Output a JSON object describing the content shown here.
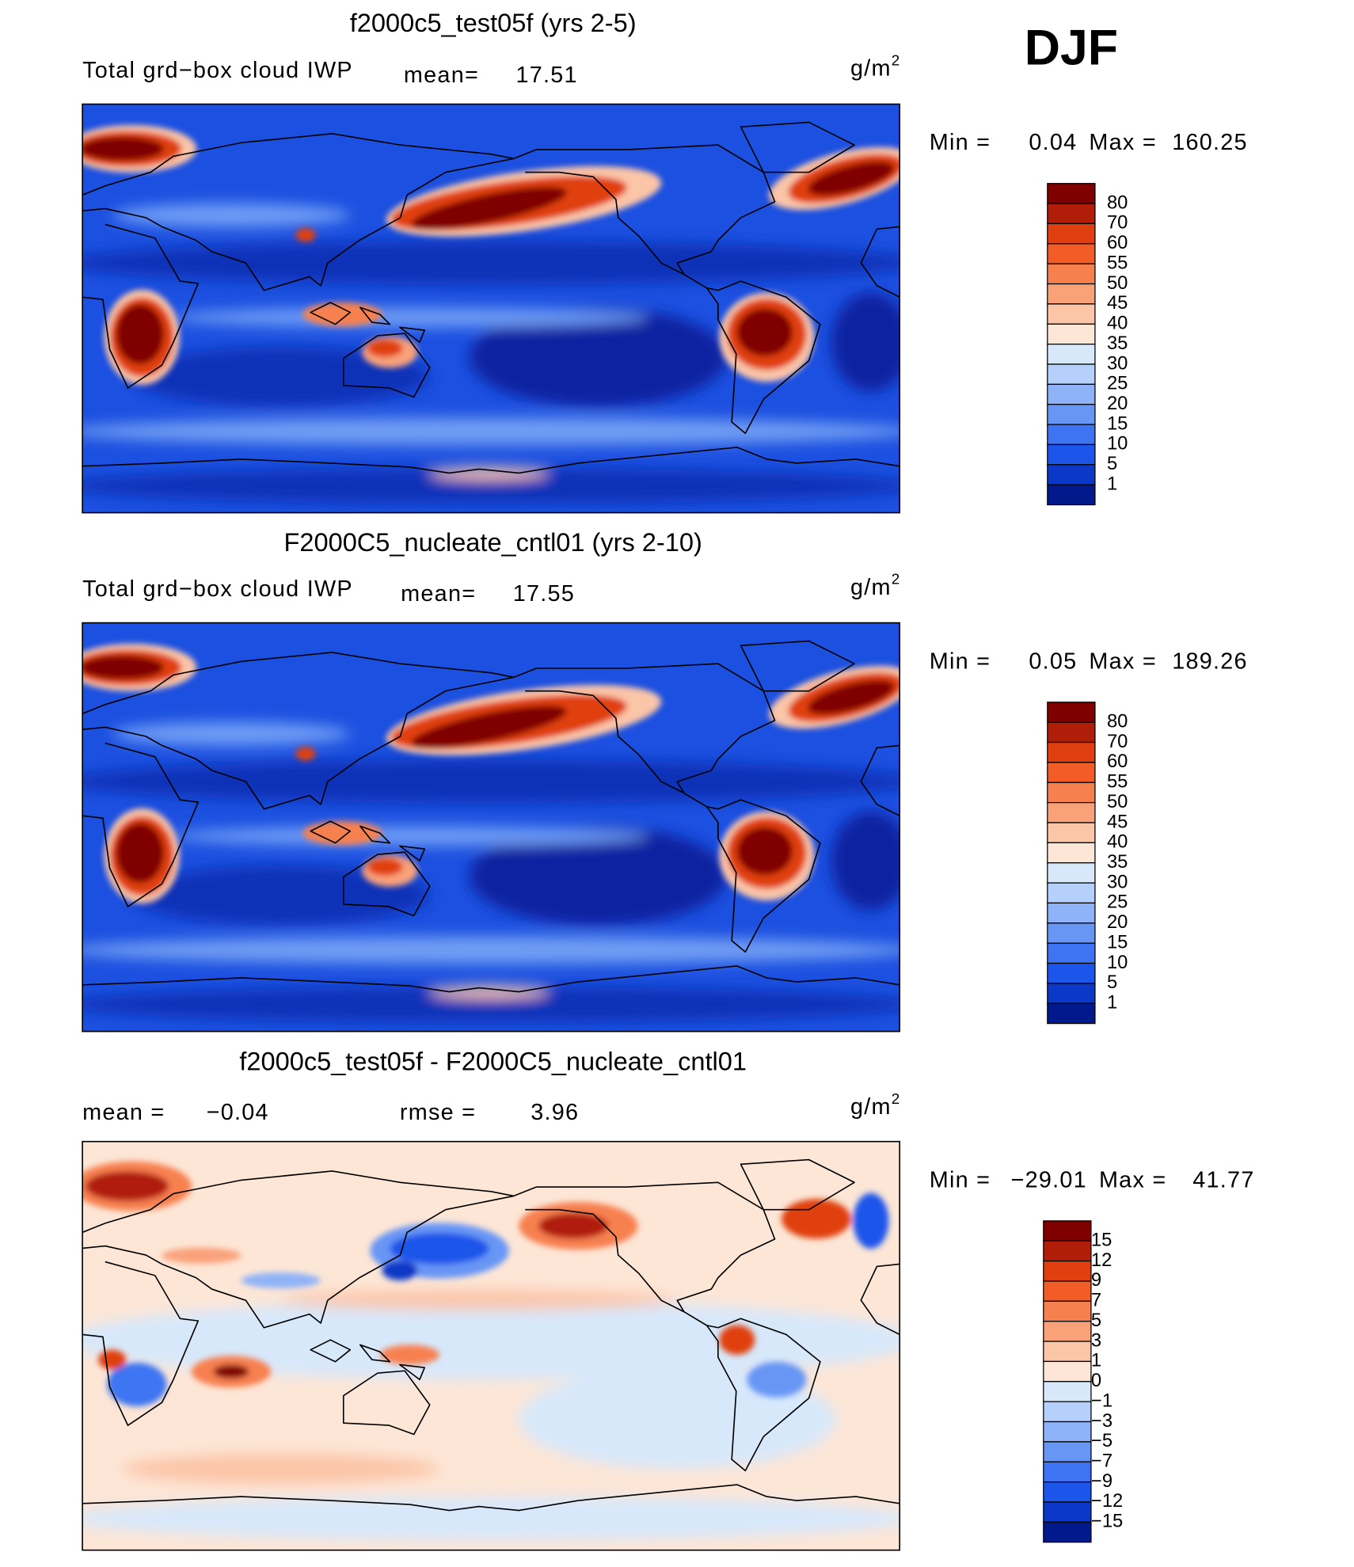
{
  "header": {
    "season": "DJF"
  },
  "panels": [
    {
      "title": "f2000c5_test05f (yrs 2-5)",
      "variable": "Total grd−box cloud IWP",
      "mean_label": "mean=",
      "mean": "17.51",
      "units": "g/m",
      "units_exp": "2",
      "min_label": "Min =",
      "min": "0.04",
      "max_label": "Max =",
      "max": "160.25",
      "colorbar": {
        "labels": [
          "80",
          "70",
          "60",
          "55",
          "50",
          "45",
          "40",
          "35",
          "30",
          "25",
          "20",
          "15",
          "10",
          "5",
          "1"
        ],
        "colors": [
          "#800000",
          "#b01e0a",
          "#e0400f",
          "#f25c27",
          "#f7804f",
          "#f9a27a",
          "#fbc5a7",
          "#fde6d6",
          "#d7e8fb",
          "#b5d0fa",
          "#8fb3f8",
          "#6896f5",
          "#3e74f2",
          "#1c55ea",
          "#0c38c8",
          "#001a8c"
        ]
      }
    },
    {
      "title": "F2000C5_nucleate_cntl01 (yrs 2-10)",
      "variable": "Total grd−box cloud IWP",
      "mean_label": "mean=",
      "mean": "17.55",
      "units": "g/m",
      "units_exp": "2",
      "min_label": "Min =",
      "min": "0.05",
      "max_label": "Max =",
      "max": "189.26",
      "colorbar": {
        "labels": [
          "80",
          "70",
          "60",
          "55",
          "50",
          "45",
          "40",
          "35",
          "30",
          "25",
          "20",
          "15",
          "10",
          "5",
          "1"
        ],
        "colors": [
          "#800000",
          "#b01e0a",
          "#e0400f",
          "#f25c27",
          "#f7804f",
          "#f9a27a",
          "#fbc5a7",
          "#fde6d6",
          "#d7e8fb",
          "#b5d0fa",
          "#8fb3f8",
          "#6896f5",
          "#3e74f2",
          "#1c55ea",
          "#0c38c8",
          "#001a8c"
        ]
      }
    },
    {
      "title": "f2000c5_test05f - F2000C5_nucleate_cntl01",
      "mean_label": "mean =",
      "mean": "−0.04",
      "rmse_label": "rmse =",
      "rmse": "3.96",
      "units": "g/m",
      "units_exp": "2",
      "min_label": "Min =",
      "min": "−29.01",
      "max_label": "Max =",
      "max": "41.77",
      "colorbar": {
        "labels": [
          "15",
          "12",
          "9",
          "7",
          "5",
          "3",
          "1",
          "0",
          "−1",
          "−3",
          "−5",
          "−7",
          "−9",
          "−12",
          "−15"
        ],
        "colors": [
          "#800000",
          "#b01e0a",
          "#e0400f",
          "#f25c27",
          "#f7804f",
          "#f9a27a",
          "#fbc5a7",
          "#fde6d6",
          "#d7e8fb",
          "#b5d0fa",
          "#8fb3f8",
          "#6896f5",
          "#3e74f2",
          "#1c55ea",
          "#0c38c8",
          "#001a8c"
        ]
      }
    }
  ]
}
